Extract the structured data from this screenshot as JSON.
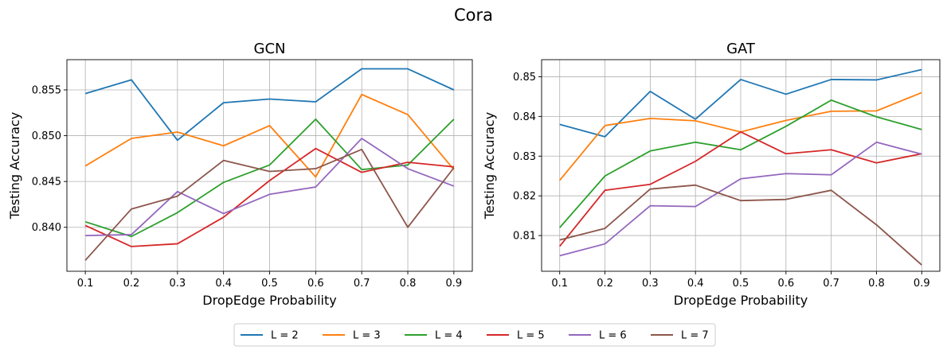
{
  "suptitle": "Cora",
  "legend": {
    "placement": "bottom-center"
  },
  "chart_data": [
    {
      "type": "line",
      "title": "GCN",
      "xlabel": "DropEdge Probability",
      "ylabel": "Testing Accuracy",
      "x": [
        0.1,
        0.2,
        0.3,
        0.4,
        0.5,
        0.6,
        0.7,
        0.8,
        0.9
      ],
      "xticks": [
        "0.1",
        "0.2",
        "0.3",
        "0.4",
        "0.5",
        "0.6",
        "0.7",
        "0.8",
        "0.9"
      ],
      "xlim": [
        0.06,
        0.94
      ],
      "ylim": [
        0.8352,
        0.8583
      ],
      "yticks": [
        "0.840",
        "0.845",
        "0.850",
        "0.855"
      ],
      "grid": true,
      "series": [
        {
          "name": "L = 2",
          "color": "#1f77b4",
          "values": [
            0.8546,
            0.8561,
            0.8495,
            0.8536,
            0.854,
            0.8537,
            0.8573,
            0.8573,
            0.855
          ]
        },
        {
          "name": "L = 3",
          "color": "#ff7f0e",
          "values": [
            0.8467,
            0.8497,
            0.8504,
            0.8489,
            0.8511,
            0.8455,
            0.8545,
            0.8523,
            0.8463
          ]
        },
        {
          "name": "L = 4",
          "color": "#2ca02c",
          "values": [
            0.8406,
            0.839,
            0.8416,
            0.8449,
            0.8468,
            0.8518,
            0.8463,
            0.8468,
            0.8518
          ]
        },
        {
          "name": "L = 5",
          "color": "#d62728",
          "values": [
            0.8402,
            0.8379,
            0.8382,
            0.8411,
            0.8451,
            0.8486,
            0.846,
            0.8471,
            0.8466
          ]
        },
        {
          "name": "L = 6",
          "color": "#9467bd",
          "values": [
            0.8391,
            0.8392,
            0.8439,
            0.8415,
            0.8436,
            0.8444,
            0.8497,
            0.8464,
            0.8445
          ]
        },
        {
          "name": "L = 7",
          "color": "#8c564b",
          "values": [
            0.8364,
            0.842,
            0.8434,
            0.8473,
            0.8461,
            0.8464,
            0.8485,
            0.84,
            0.8465
          ]
        }
      ]
    },
    {
      "type": "line",
      "title": "GAT",
      "xlabel": "DropEdge Probability",
      "ylabel": "Testing Accuracy",
      "x": [
        0.1,
        0.2,
        0.3,
        0.4,
        0.5,
        0.6,
        0.7,
        0.8,
        0.9
      ],
      "xticks": [
        "0.1",
        "0.2",
        "0.3",
        "0.4",
        "0.5",
        "0.6",
        "0.7",
        "0.8",
        "0.9"
      ],
      "xlim": [
        0.06,
        0.94
      ],
      "ylim": [
        0.801,
        0.8543
      ],
      "yticks": [
        "0.81",
        "0.82",
        "0.83",
        "0.84",
        "0.85"
      ],
      "grid": true,
      "series": [
        {
          "name": "L = 2",
          "color": "#1f77b4",
          "values": [
            0.838,
            0.8349,
            0.8463,
            0.8393,
            0.8493,
            0.8456,
            0.8493,
            0.8492,
            0.8518
          ]
        },
        {
          "name": "L = 3",
          "color": "#ff7f0e",
          "values": [
            0.8239,
            0.8377,
            0.8395,
            0.8389,
            0.8361,
            0.839,
            0.8413,
            0.8414,
            0.846
          ]
        },
        {
          "name": "L = 4",
          "color": "#2ca02c",
          "values": [
            0.812,
            0.825,
            0.8313,
            0.8335,
            0.8316,
            0.8375,
            0.8441,
            0.8399,
            0.8367
          ]
        },
        {
          "name": "L = 5",
          "color": "#d62728",
          "values": [
            0.8073,
            0.8214,
            0.8229,
            0.8287,
            0.8361,
            0.8306,
            0.8316,
            0.8283,
            0.8306
          ]
        },
        {
          "name": "L = 6",
          "color": "#9467bd",
          "values": [
            0.8049,
            0.8079,
            0.8175,
            0.8173,
            0.8243,
            0.8256,
            0.8253,
            0.8335,
            0.8305
          ]
        },
        {
          "name": "L = 7",
          "color": "#8c564b",
          "values": [
            0.8089,
            0.8118,
            0.8217,
            0.8227,
            0.8188,
            0.8191,
            0.8214,
            0.8127,
            0.8026
          ]
        }
      ]
    }
  ]
}
